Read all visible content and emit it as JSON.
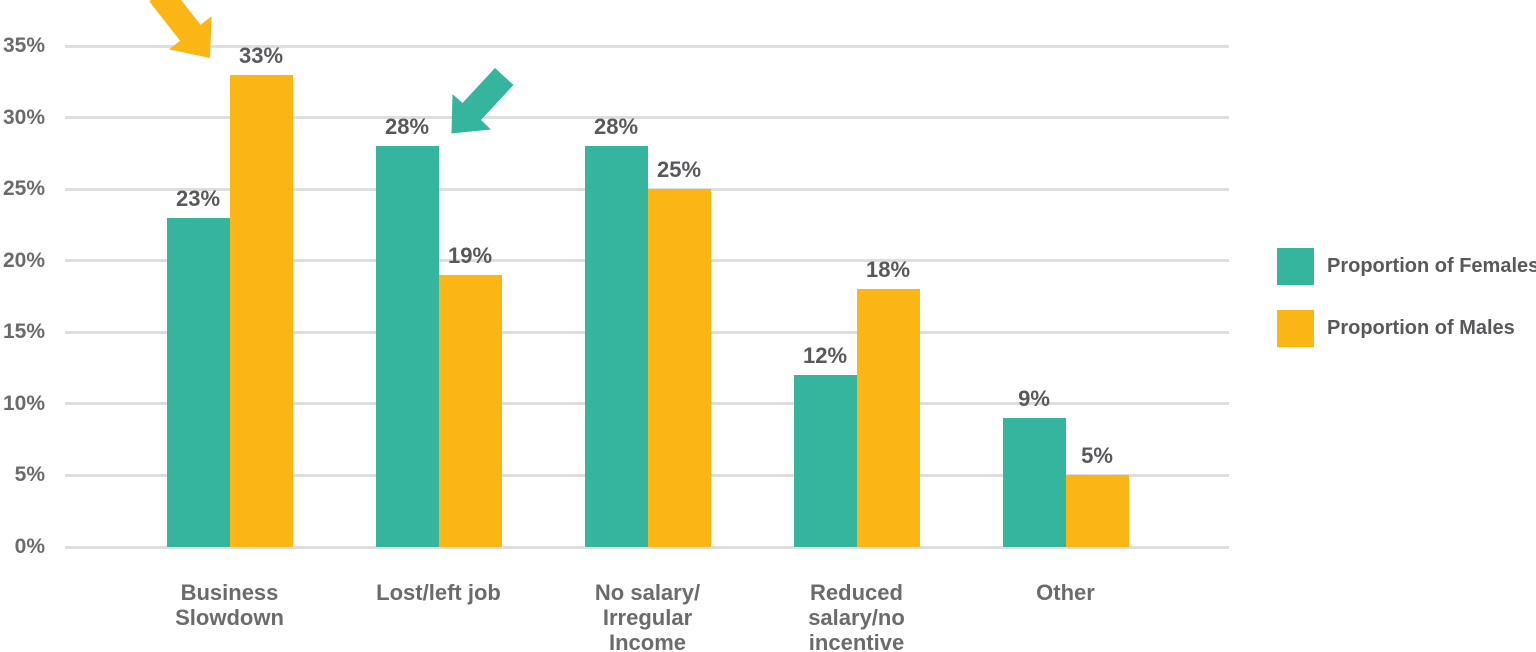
{
  "chart_data": {
    "type": "bar",
    "categories": [
      "Business Slowdown",
      "Lost/left job",
      "No salary/ Irregular Income",
      "Reduced salary/no incentive",
      "Other"
    ],
    "category_lines": [
      [
        "Business",
        "Slowdown"
      ],
      [
        "Lost/left job"
      ],
      [
        "No salary/",
        "Irregular",
        "Income"
      ],
      [
        "Reduced",
        "salary/no",
        "incentive"
      ],
      [
        "Other"
      ]
    ],
    "series": [
      {
        "name": "Proportion of Females",
        "color": "#35B59E",
        "values": [
          23,
          28,
          28,
          12,
          9
        ],
        "labels": [
          "23%",
          "28%",
          "28%",
          "12%",
          "9%"
        ]
      },
      {
        "name": "Proportion of Males",
        "color": "#FBB616",
        "values": [
          33,
          19,
          25,
          18,
          5
        ],
        "labels": [
          "33%",
          "19%",
          "25%",
          "18%",
          "5%"
        ]
      }
    ],
    "ylim": [
      0,
      35
    ],
    "ytick_step": 5,
    "yticks": [
      "0%",
      "5%",
      "10%",
      "15%",
      "20%",
      "25%",
      "30%",
      "35%"
    ],
    "grid": true,
    "legend_position": "right",
    "annotations": [
      {
        "type": "arrow",
        "color": "#FBB616",
        "direction": "down-right",
        "points_at": "Males bar 33%, Business Slowdown"
      },
      {
        "type": "arrow",
        "color": "#35B59E",
        "direction": "down-left",
        "points_at": "Females bar 28%, Lost/left job"
      }
    ],
    "colors": {
      "background": "#FFFFFF",
      "gridline": "#DEDEDE",
      "axis_label": "#6B6B6B",
      "data_label": "#58595B",
      "category_label": "#6B6B6B",
      "legend_text": "#58595B"
    }
  }
}
